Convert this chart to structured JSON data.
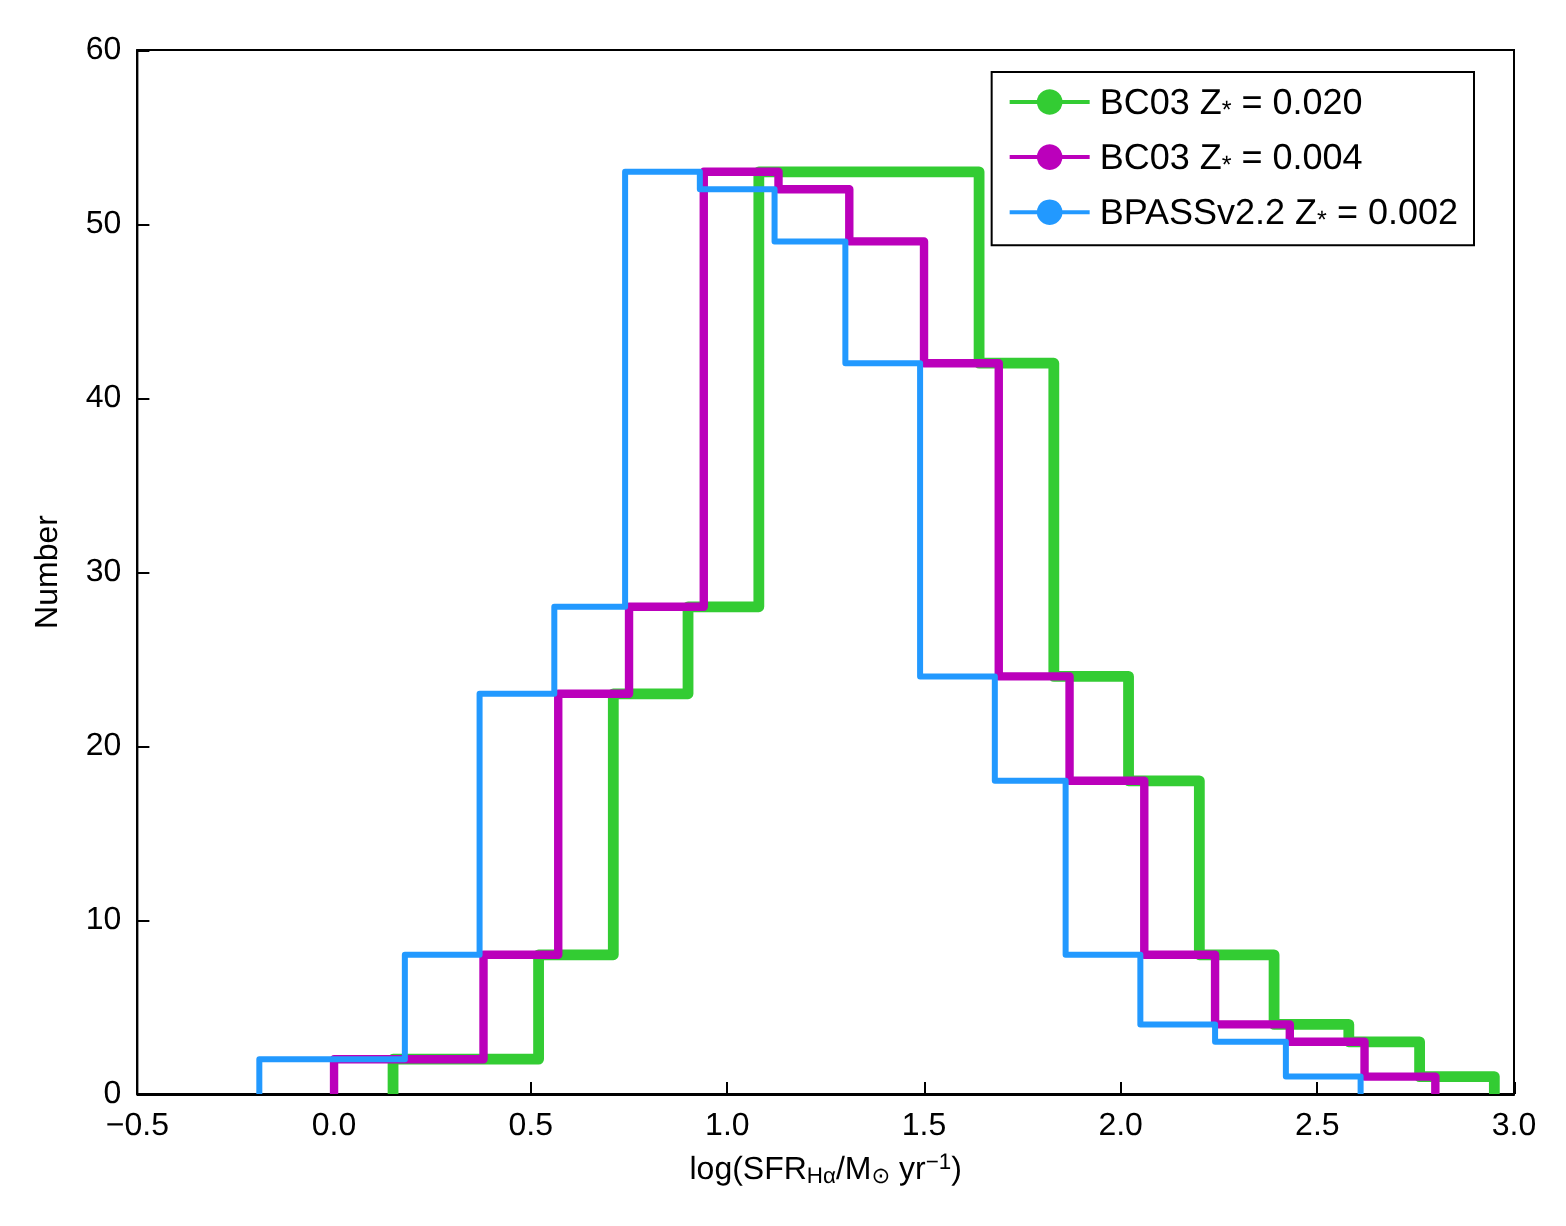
{
  "chart_data": {
    "type": "step",
    "xlabel": "log(SFR$_{Hα}$/M$_{⊙}$ yr$^{−1}$)",
    "ylabel": "Number",
    "series": [
      {
        "name": "BC03 Z$_{*}$ = 0.020",
        "color": "#33cc33",
        "x": [
          0.15,
          0.15,
          0.34,
          0.52,
          0.71,
          0.9,
          1.08,
          1.27,
          1.46,
          1.64,
          1.83,
          2.02,
          2.2,
          2.39,
          2.58,
          2.76,
          2.95
        ],
        "values": [
          0,
          2,
          2,
          8,
          23,
          28,
          53,
          53,
          53,
          42,
          24,
          18,
          8,
          4,
          3,
          1,
          0
        ]
      },
      {
        "name": "BC03 Z$_{*}$ = 0.004",
        "color": "#bb00bb",
        "x": [
          0.0,
          0.0,
          0.19,
          0.38,
          0.57,
          0.75,
          0.94,
          1.13,
          1.31,
          1.5,
          1.69,
          1.87,
          2.06,
          2.24,
          2.43,
          2.62,
          2.8
        ],
        "values": [
          0,
          2,
          2,
          8,
          23,
          28,
          53,
          52,
          49,
          42,
          24,
          18,
          8,
          4,
          3,
          1,
          0
        ]
      },
      {
        "name": "BPASSv2.2 Z$_{*}$ = 0.002",
        "color": "#2299ff",
        "x": [
          -0.19,
          -0.19,
          0.0,
          0.18,
          0.37,
          0.56,
          0.74,
          0.93,
          1.12,
          1.3,
          1.49,
          1.68,
          1.86,
          2.05,
          2.24,
          2.42,
          2.61
        ],
        "values": [
          0,
          2,
          2,
          8,
          23,
          28,
          53,
          52,
          49,
          42,
          24,
          18,
          8,
          4,
          3,
          1,
          0
        ]
      }
    ],
    "xlim": [
      -0.5,
      3.0
    ],
    "xticks": [
      {
        "value": -0.5,
        "label": "−0.5"
      },
      {
        "value": 0,
        "label": "0.0"
      },
      {
        "value": 0.5,
        "label": "0.5"
      },
      {
        "value": 1,
        "label": "1.0"
      },
      {
        "value": 1.5,
        "label": "1.5"
      },
      {
        "value": 2,
        "label": "2.0"
      },
      {
        "value": 2.5,
        "label": "2.5"
      },
      {
        "value": 3,
        "label": "3.0"
      }
    ],
    "ylim": [
      0,
      60
    ],
    "yticks": [
      0,
      10,
      20,
      30,
      40,
      50,
      60
    ],
    "legend": "top right",
    "grid": false
  }
}
